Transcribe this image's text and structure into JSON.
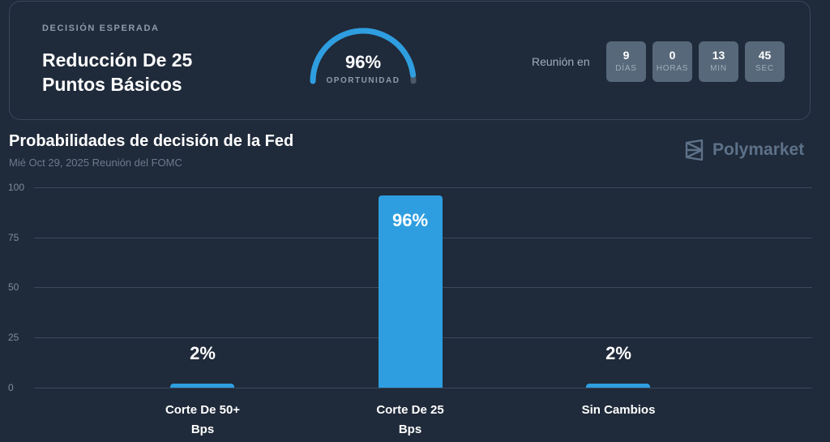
{
  "header": {
    "eyebrow": "DECISIÓN ESPERADA",
    "headline": "Reducción De 25 Puntos Básicos",
    "gauge": {
      "value": "96%",
      "label": "OPORTUNIDAD",
      "percent": 96,
      "color": "#2e9ee0",
      "track_color": "#4a5868"
    },
    "meeting_label": "Reunión en",
    "countdown": [
      {
        "value": "9",
        "unit": "DÍAS"
      },
      {
        "value": "0",
        "unit": "HORAS"
      },
      {
        "value": "13",
        "unit": "MIN"
      },
      {
        "value": "45",
        "unit": "SEC"
      }
    ]
  },
  "chart": {
    "title": "Probabilidades de decisión de la Fed",
    "subtitle": "Mié Oct 29, 2025 Reunión del FOMC",
    "brand": "Polymarket",
    "bar_color": "#2e9ee0"
  },
  "chart_data": {
    "type": "bar",
    "title": "Probabilidades de decisión de la Fed",
    "subtitle": "Mié Oct 29, 2025 Reunión del FOMC",
    "categories": [
      "Corte De 50+ Bps",
      "Corte De 25 Bps",
      "Sin Cambios"
    ],
    "values": [
      2,
      96,
      2
    ],
    "data_labels": [
      "2%",
      "96%",
      "2%"
    ],
    "xlabel": "",
    "ylabel": "",
    "ylim": [
      0,
      100
    ],
    "yticks": [
      0,
      25,
      50,
      75,
      100
    ],
    "grid": true,
    "legend": null
  }
}
